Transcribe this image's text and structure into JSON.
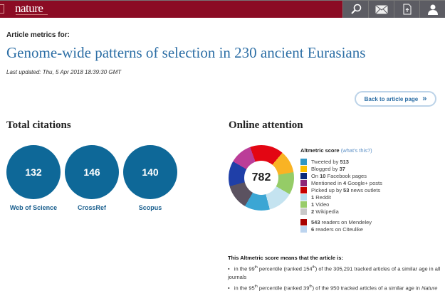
{
  "header": {
    "logo": "nature",
    "icons": [
      "search-icon",
      "mail-icon",
      "download-icon",
      "user-icon"
    ]
  },
  "page": {
    "label": "Article metrics for:",
    "title": "Genome-wide patterns of selection in 230 ancient Eurasians",
    "updated": "Last updated: Thu, 5 Apr 2018 18:39:30 GMT",
    "back": "Back to article page",
    "back_icon": "»"
  },
  "citations": {
    "heading": "Total citations",
    "items": [
      {
        "value": "132",
        "label": "Web of Science"
      },
      {
        "value": "146",
        "label": "CrossRef"
      },
      {
        "value": "140",
        "label": "Scopus"
      }
    ],
    "color": "#0e6898"
  },
  "attention": {
    "heading": "Online attention",
    "score": "782",
    "score_label": "Altmetric score",
    "whats_this": "(what's this?)",
    "sources": [
      {
        "pre": "Tweeted by ",
        "num": "513",
        "post": "",
        "color": "#2f97c5"
      },
      {
        "pre": "Blogged by ",
        "num": "37",
        "post": "",
        "color": "#fbc000"
      },
      {
        "pre": "On ",
        "num": "10",
        "post": " Facebook pages",
        "color": "#0a2a7a"
      },
      {
        "pre": "Mentioned in ",
        "num": "4",
        "post": " Google+ posts",
        "color": "#8e2577"
      },
      {
        "pre": "Picked up by ",
        "num": "53",
        "post": " news outlets",
        "color": "#c70000"
      },
      {
        "pre": "",
        "num": "1",
        "post": " Reddit",
        "color": "#b8dcee"
      },
      {
        "pre": "",
        "num": "1",
        "post": " Video",
        "color": "#98cc6a"
      },
      {
        "pre": "",
        "num": "2",
        "post": " Wikipedia",
        "color": "#c8c8c8"
      }
    ],
    "readers": [
      {
        "pre": "",
        "num": "543",
        "post": " readers on Mendeley",
        "color": "#a80000"
      },
      {
        "pre": "",
        "num": "6",
        "post": " readers on Citeulike",
        "color": "#bcd4ef"
      }
    ]
  },
  "means": {
    "title": "This Altmetric score means that the article is:",
    "b1": {
      "a": "in the 99",
      "s1": "th",
      "b": " percentile (ranked 154",
      "s2": "th",
      "c": ") of the 305,291 tracked articles of a similar age in all journals"
    },
    "b2": {
      "a": "in the 95",
      "s1": "th",
      "b": " percentile (ranked 39",
      "s2": "th",
      "c": ") of the 950 tracked articles of a similar age in ",
      "i": "Nature"
    }
  }
}
